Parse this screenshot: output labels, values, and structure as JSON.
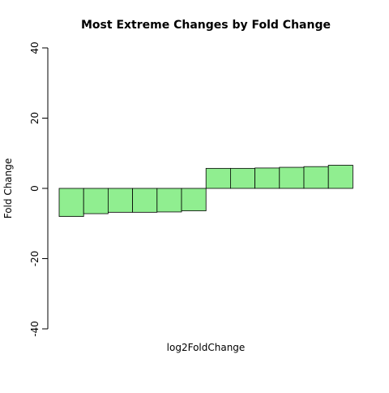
{
  "chart_data": {
    "type": "bar",
    "title": "Most Extreme Changes by Fold Change",
    "xlabel": "log2FoldChange",
    "ylabel": "Fold Change",
    "ylim": [
      -40,
      40
    ],
    "yticks": [
      -40,
      -20,
      0,
      20,
      40
    ],
    "ytick_labels": [
      "-40",
      "-20",
      "0",
      "20",
      "40"
    ],
    "values": [
      -8.0,
      -7.2,
      -6.8,
      -6.8,
      -6.7,
      -6.4,
      5.7,
      5.7,
      5.8,
      6.0,
      6.2,
      6.6
    ],
    "bar_color": "#90EE90",
    "edge_color": "#000000",
    "grid": false
  }
}
